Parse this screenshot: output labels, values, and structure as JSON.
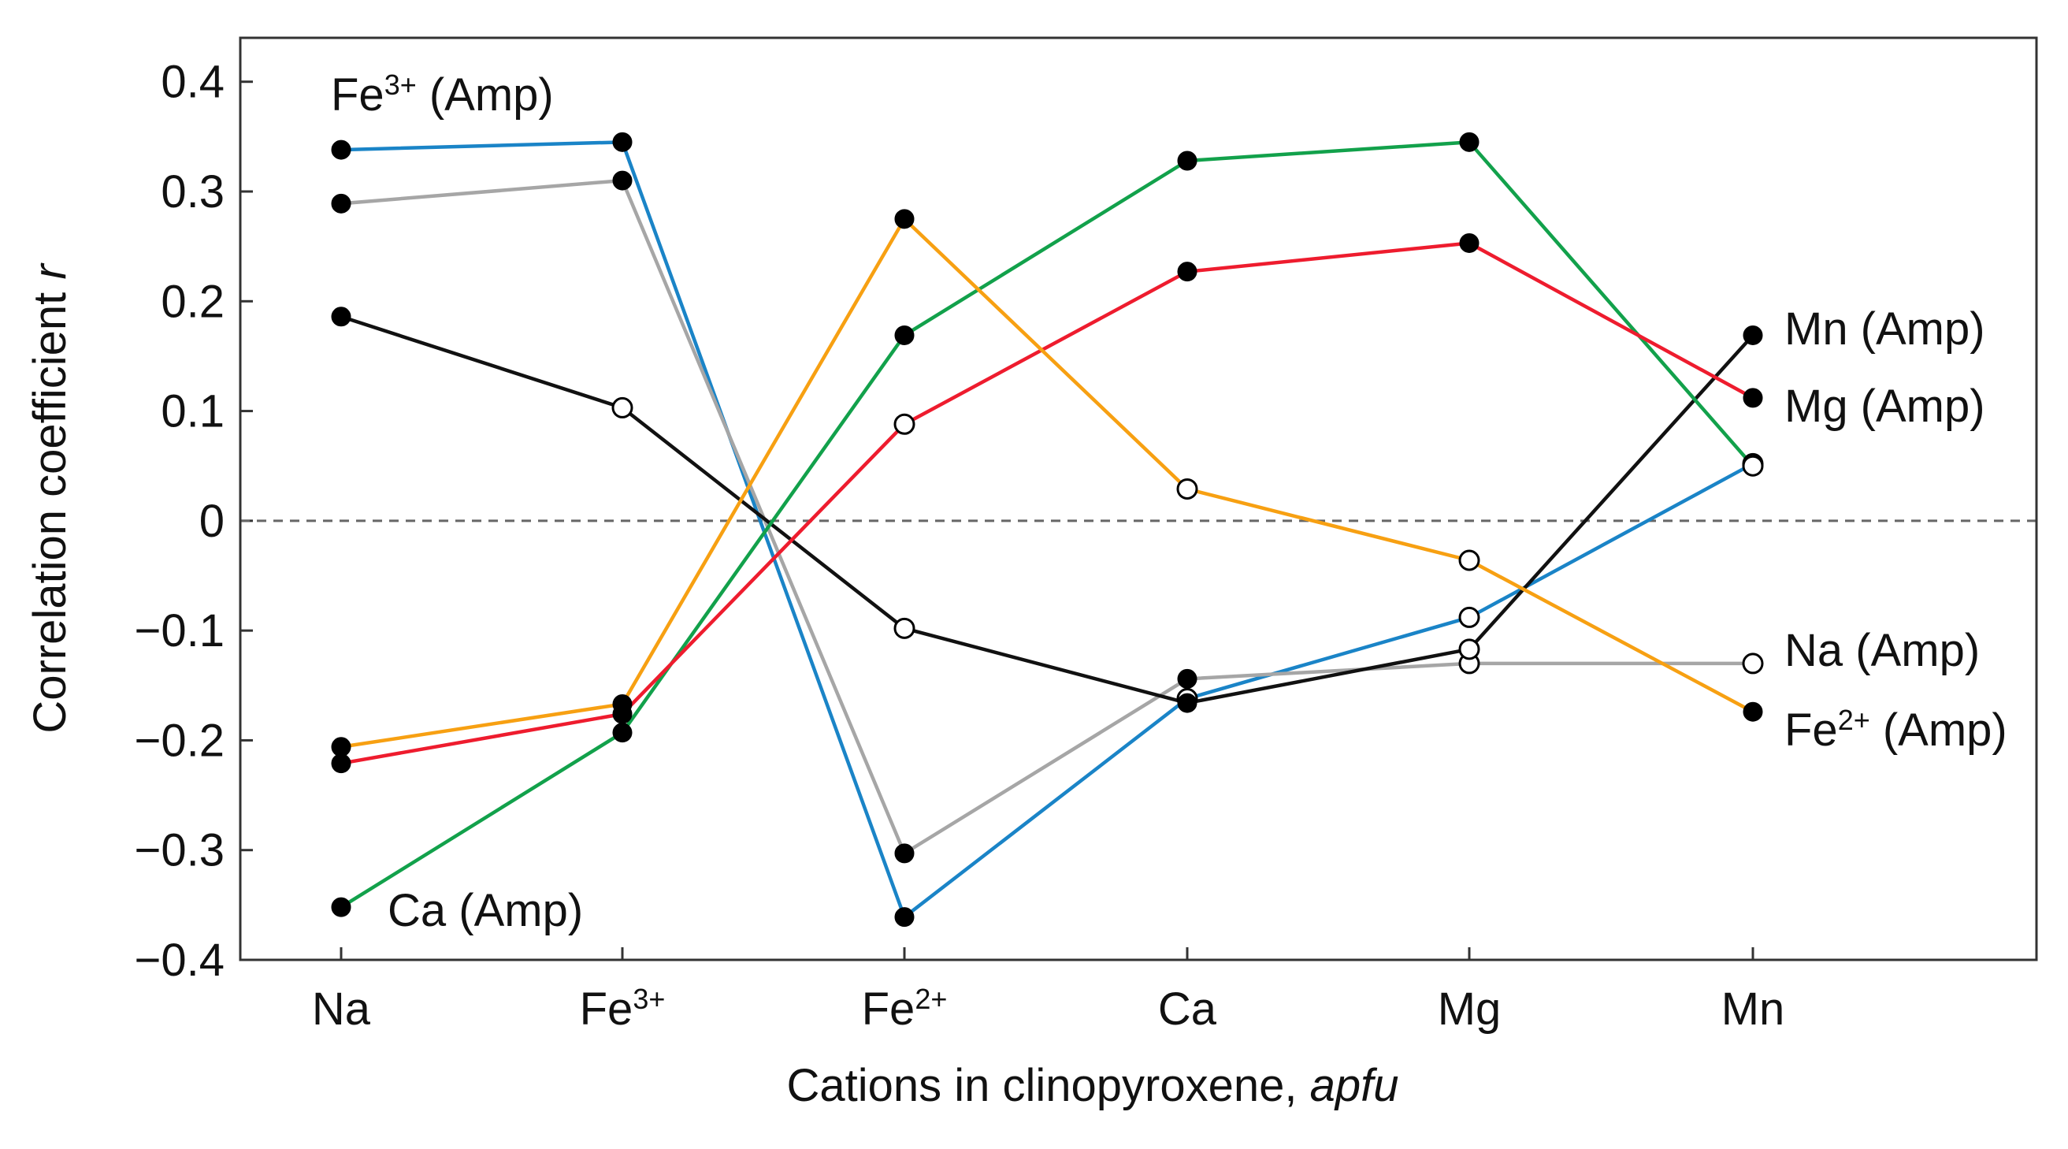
{
  "chart_data": {
    "type": "line",
    "title": "",
    "xlabel": "Cations in clinopyroxene, ",
    "xlabel_italic": "apfu",
    "ylabel": "Correlation coefficient ",
    "ylabel_italic": "r",
    "categories": [
      {
        "base": "Na",
        "sup": ""
      },
      {
        "base": "Fe",
        "sup": "3+"
      },
      {
        "base": "Fe",
        "sup": "2+"
      },
      {
        "base": "Ca",
        "sup": ""
      },
      {
        "base": "Mg",
        "sup": ""
      },
      {
        "base": "Mn",
        "sup": ""
      }
    ],
    "ylim": [
      -0.4,
      0.44
    ],
    "yticks": [
      {
        "value": 0.4,
        "label": "0.4"
      },
      {
        "value": 0.3,
        "label": "0.3"
      },
      {
        "value": 0.2,
        "label": "0.2"
      },
      {
        "value": 0.1,
        "label": "0.1"
      },
      {
        "value": 0,
        "label": "0"
      },
      {
        "value": -0.1,
        "label": "−0.1"
      },
      {
        "value": -0.2,
        "label": "−0.2"
      },
      {
        "value": -0.3,
        "label": "−0.3"
      },
      {
        "value": -0.4,
        "label": "−0.4"
      }
    ],
    "zero_line": "dashed",
    "grid": false,
    "series": [
      {
        "name": "Fe3+ (Amp)",
        "label_base": "Fe",
        "label_sup": "3+",
        "label_rest": " (Amp)",
        "color": "#1a84c7",
        "values": [
          0.338,
          0.345,
          -0.361,
          -0.162,
          -0.088,
          0.052
        ],
        "filled": [
          true,
          true,
          true,
          false,
          false,
          false
        ]
      },
      {
        "name": "Na (Amp)",
        "label_base": "Na (Amp)",
        "label_sup": "",
        "label_rest": "",
        "color": "#a6a6a6",
        "values": [
          0.289,
          0.31,
          -0.303,
          -0.144,
          -0.13,
          -0.13
        ],
        "filled": [
          true,
          true,
          true,
          true,
          false,
          false
        ]
      },
      {
        "name": "Mn (Amp)",
        "label_base": "Mn (Amp)",
        "label_sup": "",
        "label_rest": "",
        "color": "#111111",
        "values": [
          0.186,
          0.103,
          -0.098,
          -0.166,
          -0.117,
          0.169
        ],
        "filled": [
          true,
          false,
          false,
          true,
          false,
          true
        ]
      },
      {
        "name": "Ca (Amp)",
        "label_base": "Ca (Amp)",
        "label_sup": "",
        "label_rest": "",
        "color": "#12a14b",
        "values": [
          -0.352,
          -0.193,
          0.169,
          0.328,
          0.345,
          0.05
        ],
        "filled": [
          true,
          true,
          true,
          true,
          true,
          false
        ]
      },
      {
        "name": "Mg (Amp)",
        "label_base": "Mg (Amp)",
        "label_sup": "",
        "label_rest": "",
        "color": "#ee1c2e",
        "values": [
          -0.221,
          -0.176,
          0.088,
          0.227,
          0.253,
          0.112
        ],
        "filled": [
          true,
          true,
          false,
          true,
          true,
          true
        ]
      },
      {
        "name": "Fe2+ (Amp)",
        "label_base": "Fe",
        "label_sup": "2+",
        "label_rest": " (Amp)",
        "color": "#f7a012",
        "values": [
          -0.206,
          -0.167,
          0.275,
          0.029,
          -0.036,
          -0.174
        ],
        "filled": [
          true,
          true,
          true,
          false,
          false,
          true
        ]
      }
    ]
  }
}
